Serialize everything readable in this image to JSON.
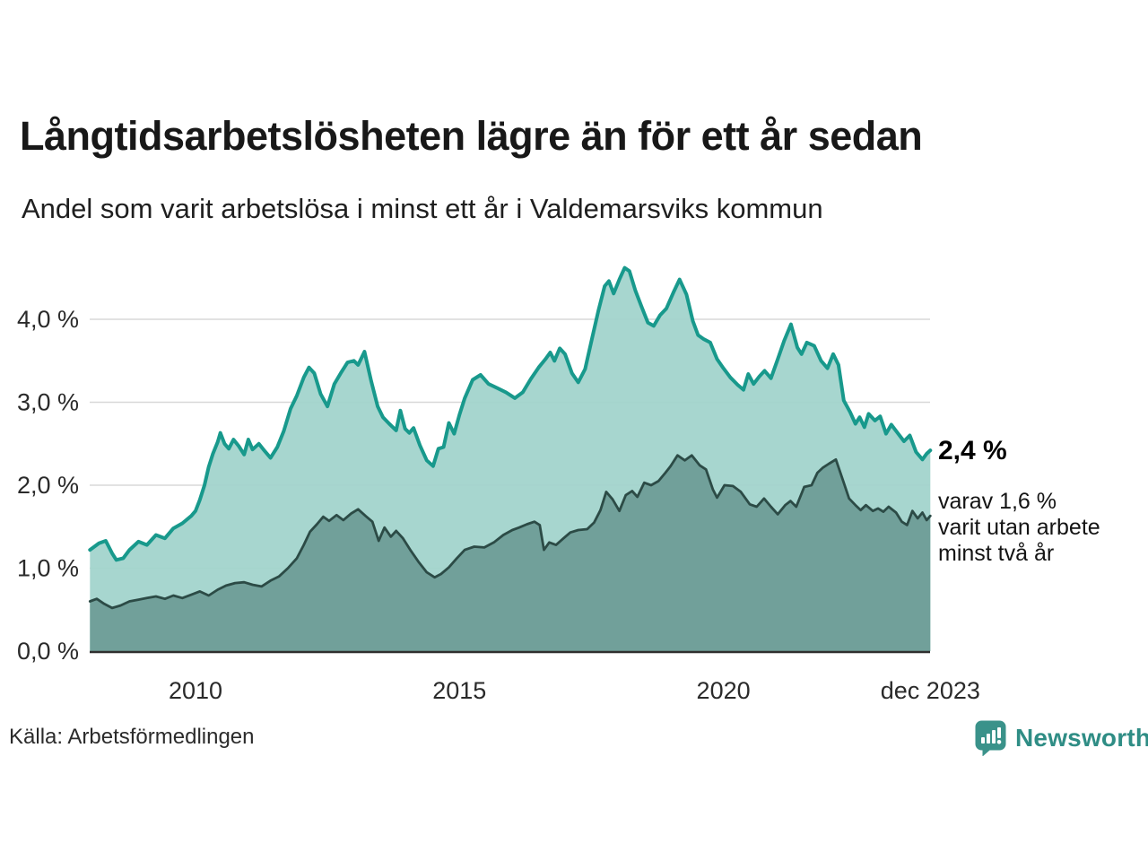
{
  "header": {
    "title": "Långtidsarbetslösheten lägre än för ett år sedan",
    "subtitle": "Andel som varit arbetslösa i minst ett år i Valdemarsviks kommun"
  },
  "chart_data": {
    "type": "area",
    "title": "Långtidsarbetslösheten lägre än för ett år sedan",
    "subtitle": "Andel som varit arbetslösa i minst ett år i Valdemarsviks kommun",
    "unit": "%",
    "grid": "horizontal",
    "ylim": [
      0,
      4.8
    ],
    "x_range_years": [
      2008.0,
      2023.92
    ],
    "y_ticks": [
      {
        "label": "0,0 %",
        "value": 0
      },
      {
        "label": "1,0 %",
        "value": 1
      },
      {
        "label": "2,0 %",
        "value": 2
      },
      {
        "label": "3,0 %",
        "value": 3
      },
      {
        "label": "4,0 %",
        "value": 4
      }
    ],
    "x_ticks": [
      {
        "label": "2010",
        "year": 2010
      },
      {
        "label": "2015",
        "year": 2015
      },
      {
        "label": "2020",
        "year": 2020
      },
      {
        "label": "dec 2023",
        "year": 2023.92
      }
    ],
    "colors": {
      "line_one_year": "#18998c",
      "fill_one_year": "#a0d3cb",
      "line_two_years": "#2c4b46",
      "fill_two_years": "#6f9e98",
      "gridline": "#d8d8d8",
      "axis": "#2f2f2f"
    },
    "series": [
      {
        "name": "Andel som varit arbetslösa i minst ett år",
        "last_value_label": "2,4 %",
        "points": [
          [
            2008.0,
            1.22
          ],
          [
            2008.17,
            1.3
          ],
          [
            2008.3,
            1.33
          ],
          [
            2008.42,
            1.18
          ],
          [
            2008.5,
            1.1
          ],
          [
            2008.63,
            1.12
          ],
          [
            2008.75,
            1.22
          ],
          [
            2008.92,
            1.32
          ],
          [
            2009.08,
            1.28
          ],
          [
            2009.25,
            1.4
          ],
          [
            2009.42,
            1.36
          ],
          [
            2009.58,
            1.48
          ],
          [
            2009.75,
            1.54
          ],
          [
            2009.92,
            1.63
          ],
          [
            2010.0,
            1.69
          ],
          [
            2010.08,
            1.82
          ],
          [
            2010.17,
            2.0
          ],
          [
            2010.25,
            2.22
          ],
          [
            2010.33,
            2.38
          ],
          [
            2010.42,
            2.52
          ],
          [
            2010.47,
            2.63
          ],
          [
            2010.55,
            2.5
          ],
          [
            2010.63,
            2.44
          ],
          [
            2010.72,
            2.55
          ],
          [
            2010.82,
            2.47
          ],
          [
            2010.92,
            2.37
          ],
          [
            2011.0,
            2.55
          ],
          [
            2011.08,
            2.43
          ],
          [
            2011.2,
            2.5
          ],
          [
            2011.3,
            2.42
          ],
          [
            2011.42,
            2.33
          ],
          [
            2011.55,
            2.46
          ],
          [
            2011.67,
            2.65
          ],
          [
            2011.8,
            2.92
          ],
          [
            2011.92,
            3.08
          ],
          [
            2012.05,
            3.3
          ],
          [
            2012.15,
            3.42
          ],
          [
            2012.25,
            3.35
          ],
          [
            2012.37,
            3.1
          ],
          [
            2012.5,
            2.95
          ],
          [
            2012.63,
            3.22
          ],
          [
            2012.75,
            3.35
          ],
          [
            2012.88,
            3.48
          ],
          [
            2013.0,
            3.5
          ],
          [
            2013.08,
            3.45
          ],
          [
            2013.2,
            3.61
          ],
          [
            2013.33,
            3.25
          ],
          [
            2013.45,
            2.95
          ],
          [
            2013.55,
            2.82
          ],
          [
            2013.67,
            2.74
          ],
          [
            2013.8,
            2.66
          ],
          [
            2013.88,
            2.9
          ],
          [
            2013.97,
            2.68
          ],
          [
            2014.05,
            2.63
          ],
          [
            2014.13,
            2.69
          ],
          [
            2014.25,
            2.48
          ],
          [
            2014.38,
            2.3
          ],
          [
            2014.5,
            2.23
          ],
          [
            2014.6,
            2.44
          ],
          [
            2014.7,
            2.46
          ],
          [
            2014.8,
            2.75
          ],
          [
            2014.9,
            2.62
          ],
          [
            2015.0,
            2.85
          ],
          [
            2015.1,
            3.05
          ],
          [
            2015.25,
            3.27
          ],
          [
            2015.4,
            3.33
          ],
          [
            2015.55,
            3.22
          ],
          [
            2015.72,
            3.17
          ],
          [
            2015.88,
            3.12
          ],
          [
            2016.05,
            3.05
          ],
          [
            2016.2,
            3.12
          ],
          [
            2016.35,
            3.28
          ],
          [
            2016.5,
            3.42
          ],
          [
            2016.63,
            3.52
          ],
          [
            2016.72,
            3.6
          ],
          [
            2016.8,
            3.5
          ],
          [
            2016.9,
            3.65
          ],
          [
            2017.0,
            3.58
          ],
          [
            2017.13,
            3.35
          ],
          [
            2017.25,
            3.24
          ],
          [
            2017.38,
            3.4
          ],
          [
            2017.5,
            3.74
          ],
          [
            2017.63,
            4.1
          ],
          [
            2017.75,
            4.4
          ],
          [
            2017.83,
            4.46
          ],
          [
            2017.92,
            4.31
          ],
          [
            2018.03,
            4.48
          ],
          [
            2018.13,
            4.62
          ],
          [
            2018.22,
            4.58
          ],
          [
            2018.33,
            4.35
          ],
          [
            2018.45,
            4.15
          ],
          [
            2018.57,
            3.96
          ],
          [
            2018.68,
            3.92
          ],
          [
            2018.8,
            4.05
          ],
          [
            2018.92,
            4.13
          ],
          [
            2019.05,
            4.32
          ],
          [
            2019.17,
            4.48
          ],
          [
            2019.3,
            4.3
          ],
          [
            2019.42,
            3.98
          ],
          [
            2019.52,
            3.81
          ],
          [
            2019.63,
            3.76
          ],
          [
            2019.75,
            3.72
          ],
          [
            2019.88,
            3.52
          ],
          [
            2020.0,
            3.41
          ],
          [
            2020.13,
            3.3
          ],
          [
            2020.27,
            3.21
          ],
          [
            2020.38,
            3.15
          ],
          [
            2020.47,
            3.34
          ],
          [
            2020.57,
            3.22
          ],
          [
            2020.68,
            3.31
          ],
          [
            2020.78,
            3.38
          ],
          [
            2020.9,
            3.29
          ],
          [
            2021.03,
            3.52
          ],
          [
            2021.15,
            3.74
          ],
          [
            2021.28,
            3.94
          ],
          [
            2021.4,
            3.66
          ],
          [
            2021.48,
            3.58
          ],
          [
            2021.58,
            3.72
          ],
          [
            2021.72,
            3.68
          ],
          [
            2021.85,
            3.5
          ],
          [
            2021.97,
            3.41
          ],
          [
            2022.08,
            3.58
          ],
          [
            2022.18,
            3.45
          ],
          [
            2022.28,
            3.02
          ],
          [
            2022.4,
            2.88
          ],
          [
            2022.5,
            2.74
          ],
          [
            2022.58,
            2.82
          ],
          [
            2022.67,
            2.7
          ],
          [
            2022.75,
            2.86
          ],
          [
            2022.87,
            2.78
          ],
          [
            2022.97,
            2.83
          ],
          [
            2023.08,
            2.62
          ],
          [
            2023.18,
            2.73
          ],
          [
            2023.3,
            2.63
          ],
          [
            2023.42,
            2.53
          ],
          [
            2023.53,
            2.6
          ],
          [
            2023.65,
            2.4
          ],
          [
            2023.77,
            2.31
          ],
          [
            2023.85,
            2.38
          ],
          [
            2023.92,
            2.42
          ]
        ]
      },
      {
        "name": "varav varit utan arbete minst två år",
        "last_value_label": "1,6 %",
        "points": [
          [
            2008.0,
            0.6
          ],
          [
            2008.13,
            0.63
          ],
          [
            2008.27,
            0.57
          ],
          [
            2008.42,
            0.52
          ],
          [
            2008.58,
            0.55
          ],
          [
            2008.75,
            0.6
          ],
          [
            2008.92,
            0.62
          ],
          [
            2009.08,
            0.64
          ],
          [
            2009.25,
            0.66
          ],
          [
            2009.42,
            0.63
          ],
          [
            2009.58,
            0.67
          ],
          [
            2009.75,
            0.64
          ],
          [
            2009.92,
            0.68
          ],
          [
            2010.08,
            0.72
          ],
          [
            2010.25,
            0.67
          ],
          [
            2010.42,
            0.74
          ],
          [
            2010.58,
            0.79
          ],
          [
            2010.75,
            0.82
          ],
          [
            2010.92,
            0.83
          ],
          [
            2011.08,
            0.8
          ],
          [
            2011.25,
            0.78
          ],
          [
            2011.42,
            0.85
          ],
          [
            2011.58,
            0.9
          ],
          [
            2011.75,
            1.0
          ],
          [
            2011.92,
            1.12
          ],
          [
            2012.05,
            1.28
          ],
          [
            2012.17,
            1.44
          ],
          [
            2012.3,
            1.53
          ],
          [
            2012.42,
            1.62
          ],
          [
            2012.53,
            1.57
          ],
          [
            2012.67,
            1.64
          ],
          [
            2012.8,
            1.58
          ],
          [
            2012.95,
            1.66
          ],
          [
            2013.08,
            1.71
          ],
          [
            2013.22,
            1.63
          ],
          [
            2013.35,
            1.56
          ],
          [
            2013.47,
            1.33
          ],
          [
            2013.58,
            1.49
          ],
          [
            2013.7,
            1.38
          ],
          [
            2013.8,
            1.45
          ],
          [
            2013.93,
            1.36
          ],
          [
            2014.08,
            1.21
          ],
          [
            2014.22,
            1.08
          ],
          [
            2014.38,
            0.95
          ],
          [
            2014.53,
            0.89
          ],
          [
            2014.65,
            0.93
          ],
          [
            2014.8,
            1.01
          ],
          [
            2014.95,
            1.12
          ],
          [
            2015.1,
            1.22
          ],
          [
            2015.28,
            1.26
          ],
          [
            2015.47,
            1.25
          ],
          [
            2015.65,
            1.31
          ],
          [
            2015.83,
            1.4
          ],
          [
            2016.0,
            1.46
          ],
          [
            2016.13,
            1.49
          ],
          [
            2016.28,
            1.53
          ],
          [
            2016.42,
            1.56
          ],
          [
            2016.52,
            1.52
          ],
          [
            2016.6,
            1.22
          ],
          [
            2016.7,
            1.31
          ],
          [
            2016.83,
            1.28
          ],
          [
            2016.97,
            1.36
          ],
          [
            2017.1,
            1.43
          ],
          [
            2017.25,
            1.46
          ],
          [
            2017.42,
            1.47
          ],
          [
            2017.55,
            1.55
          ],
          [
            2017.67,
            1.7
          ],
          [
            2017.78,
            1.92
          ],
          [
            2017.9,
            1.83
          ],
          [
            2018.03,
            1.69
          ],
          [
            2018.15,
            1.88
          ],
          [
            2018.27,
            1.93
          ],
          [
            2018.37,
            1.86
          ],
          [
            2018.5,
            2.03
          ],
          [
            2018.63,
            2.0
          ],
          [
            2018.77,
            2.05
          ],
          [
            2018.9,
            2.15
          ],
          [
            2019.0,
            2.23
          ],
          [
            2019.13,
            2.36
          ],
          [
            2019.27,
            2.3
          ],
          [
            2019.4,
            2.36
          ],
          [
            2019.55,
            2.24
          ],
          [
            2019.67,
            2.19
          ],
          [
            2019.8,
            1.95
          ],
          [
            2019.88,
            1.85
          ],
          [
            2020.02,
            2.0
          ],
          [
            2020.18,
            1.99
          ],
          [
            2020.33,
            1.92
          ],
          [
            2020.5,
            1.77
          ],
          [
            2020.63,
            1.74
          ],
          [
            2020.77,
            1.84
          ],
          [
            2020.9,
            1.74
          ],
          [
            2021.03,
            1.65
          ],
          [
            2021.17,
            1.76
          ],
          [
            2021.27,
            1.81
          ],
          [
            2021.38,
            1.74
          ],
          [
            2021.53,
            1.98
          ],
          [
            2021.67,
            2.0
          ],
          [
            2021.78,
            2.15
          ],
          [
            2021.88,
            2.21
          ],
          [
            2022.0,
            2.26
          ],
          [
            2022.13,
            2.31
          ],
          [
            2022.27,
            2.05
          ],
          [
            2022.38,
            1.84
          ],
          [
            2022.5,
            1.76
          ],
          [
            2022.6,
            1.7
          ],
          [
            2022.7,
            1.76
          ],
          [
            2022.83,
            1.69
          ],
          [
            2022.93,
            1.72
          ],
          [
            2023.03,
            1.68
          ],
          [
            2023.13,
            1.74
          ],
          [
            2023.27,
            1.67
          ],
          [
            2023.38,
            1.56
          ],
          [
            2023.48,
            1.52
          ],
          [
            2023.58,
            1.69
          ],
          [
            2023.68,
            1.6
          ],
          [
            2023.77,
            1.67
          ],
          [
            2023.85,
            1.58
          ],
          [
            2023.92,
            1.63
          ]
        ]
      }
    ],
    "end_labels": {
      "value_label": "2,4 %",
      "annotation_lines": [
        "varav 1,6 %",
        "varit utan arbete",
        "minst två år"
      ]
    },
    "legend_position": "none"
  },
  "footer": {
    "source": "Källa: Arbetsförmedlingen",
    "brand": "Newsworthy"
  }
}
